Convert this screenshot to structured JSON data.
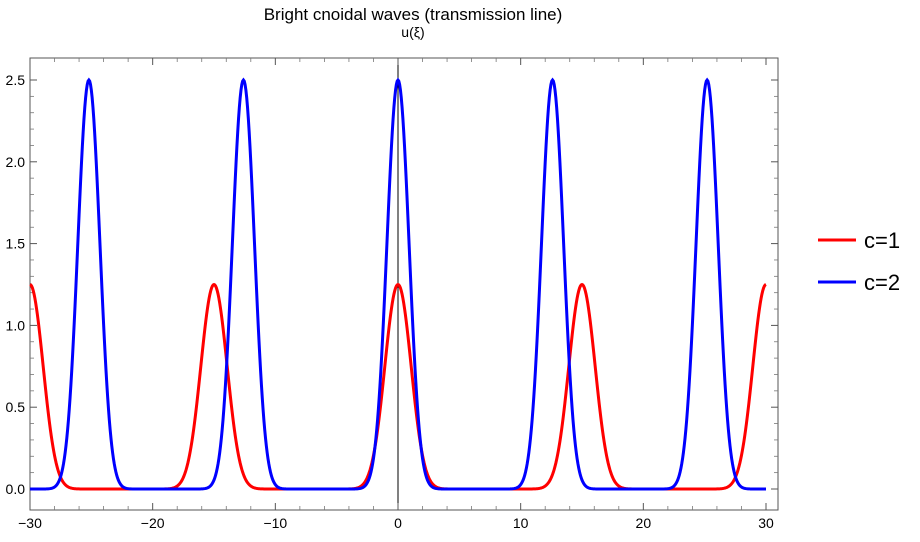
{
  "chart_data": {
    "type": "line",
    "title": "Bright cnoidal waves (transmission line)",
    "ylabel": "u(ξ)",
    "xlabel": "",
    "xlim": [
      -30,
      30
    ],
    "ylim": [
      0,
      2.5
    ],
    "xticks": [
      -30,
      -20,
      -10,
      0,
      10,
      20,
      30
    ],
    "xtick_labels": [
      "−30",
      "−20",
      "−10",
      "0",
      "10",
      "20",
      "30"
    ],
    "yticks": [
      0,
      0.5,
      1,
      1.5,
      2,
      2.5
    ],
    "ytick_labels": [
      "0.0",
      "0.5",
      "1.0",
      "1.5",
      "2.0",
      "2.5"
    ],
    "legend_position": "right",
    "series": [
      {
        "name": "c=1",
        "color": "#ff0000",
        "amplitude": 1.25,
        "period": 15,
        "peaks_x": [
          -30,
          -15,
          0,
          15,
          30
        ],
        "minimum": 0.0
      },
      {
        "name": "c=2",
        "color": "#0000ff",
        "amplitude": 2.5,
        "period": 12.6,
        "peaks_x": [
          -25.2,
          -12.6,
          0,
          12.6,
          25.2
        ],
        "minimum": 0.0
      }
    ]
  }
}
